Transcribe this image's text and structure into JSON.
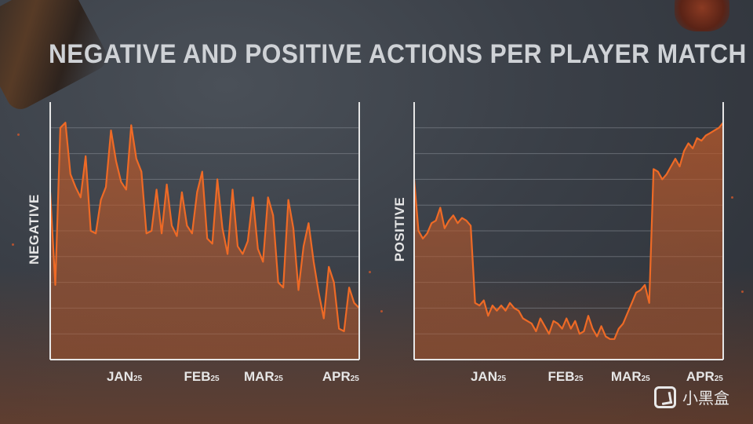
{
  "title": "NEGATIVE AND POSITIVE ACTIONS PER PLAYER MATCH",
  "watermark": {
    "text": "小黑盒",
    "icon": "box-logo-icon"
  },
  "colors": {
    "line": "#ee6a26",
    "fill": "#b8582a",
    "axis": "#e6e6e6",
    "grid": "#8a8f97"
  },
  "chart_data": [
    {
      "type": "area",
      "ylabel": "NEGATIVE",
      "xticks": [
        {
          "main": "JAN",
          "sub": "25",
          "pos": 0.24
        },
        {
          "main": "FEB",
          "sub": "25",
          "pos": 0.49
        },
        {
          "main": "MAR",
          "sub": "25",
          "pos": 0.69
        },
        {
          "main": "APR",
          "sub": "25",
          "pos": 0.94
        }
      ],
      "ylim": [
        0,
        10
      ],
      "grid": true,
      "values": [
        6.5,
        2.9,
        9.0,
        9.2,
        7.2,
        6.7,
        6.3,
        7.9,
        5.0,
        4.9,
        6.2,
        6.7,
        8.9,
        7.7,
        6.9,
        6.6,
        9.1,
        7.8,
        7.3,
        4.9,
        5.0,
        6.6,
        4.9,
        6.8,
        5.2,
        4.8,
        6.5,
        5.2,
        4.9,
        6.5,
        7.3,
        4.7,
        4.5,
        7.0,
        5.1,
        4.1,
        6.6,
        4.4,
        4.1,
        4.6,
        6.3,
        4.3,
        3.8,
        6.3,
        5.6,
        3.0,
        2.8,
        6.2,
        5.1,
        2.7,
        4.4,
        5.3,
        3.8,
        2.6,
        1.6,
        3.6,
        3.0,
        1.2,
        1.1,
        2.8,
        2.2,
        2.0
      ]
    },
    {
      "type": "area",
      "ylabel": "POSITIVE",
      "xticks": [
        {
          "main": "JAN",
          "sub": "25",
          "pos": 0.24
        },
        {
          "main": "FEB",
          "sub": "25",
          "pos": 0.49
        },
        {
          "main": "MAR",
          "sub": "25",
          "pos": 0.7
        },
        {
          "main": "APR",
          "sub": "25",
          "pos": 0.94
        }
      ],
      "ylim": [
        0,
        10
      ],
      "grid": true,
      "values": [
        7.0,
        5.0,
        4.7,
        4.9,
        5.3,
        5.4,
        5.9,
        5.1,
        5.4,
        5.6,
        5.3,
        5.5,
        5.4,
        5.2,
        2.2,
        2.1,
        2.3,
        1.7,
        2.1,
        1.9,
        2.1,
        1.9,
        2.2,
        2.0,
        1.9,
        1.6,
        1.5,
        1.4,
        1.1,
        1.6,
        1.3,
        1.0,
        1.5,
        1.4,
        1.2,
        1.6,
        1.2,
        1.5,
        1.0,
        1.1,
        1.7,
        1.2,
        0.9,
        1.3,
        0.9,
        0.8,
        0.8,
        1.2,
        1.4,
        1.8,
        2.2,
        2.6,
        2.7,
        2.9,
        2.2,
        7.4,
        7.3,
        7.0,
        7.2,
        7.5,
        7.8,
        7.5,
        8.1,
        8.4,
        8.2,
        8.6,
        8.5,
        8.7,
        8.8,
        8.9,
        9.0,
        9.2
      ]
    }
  ]
}
